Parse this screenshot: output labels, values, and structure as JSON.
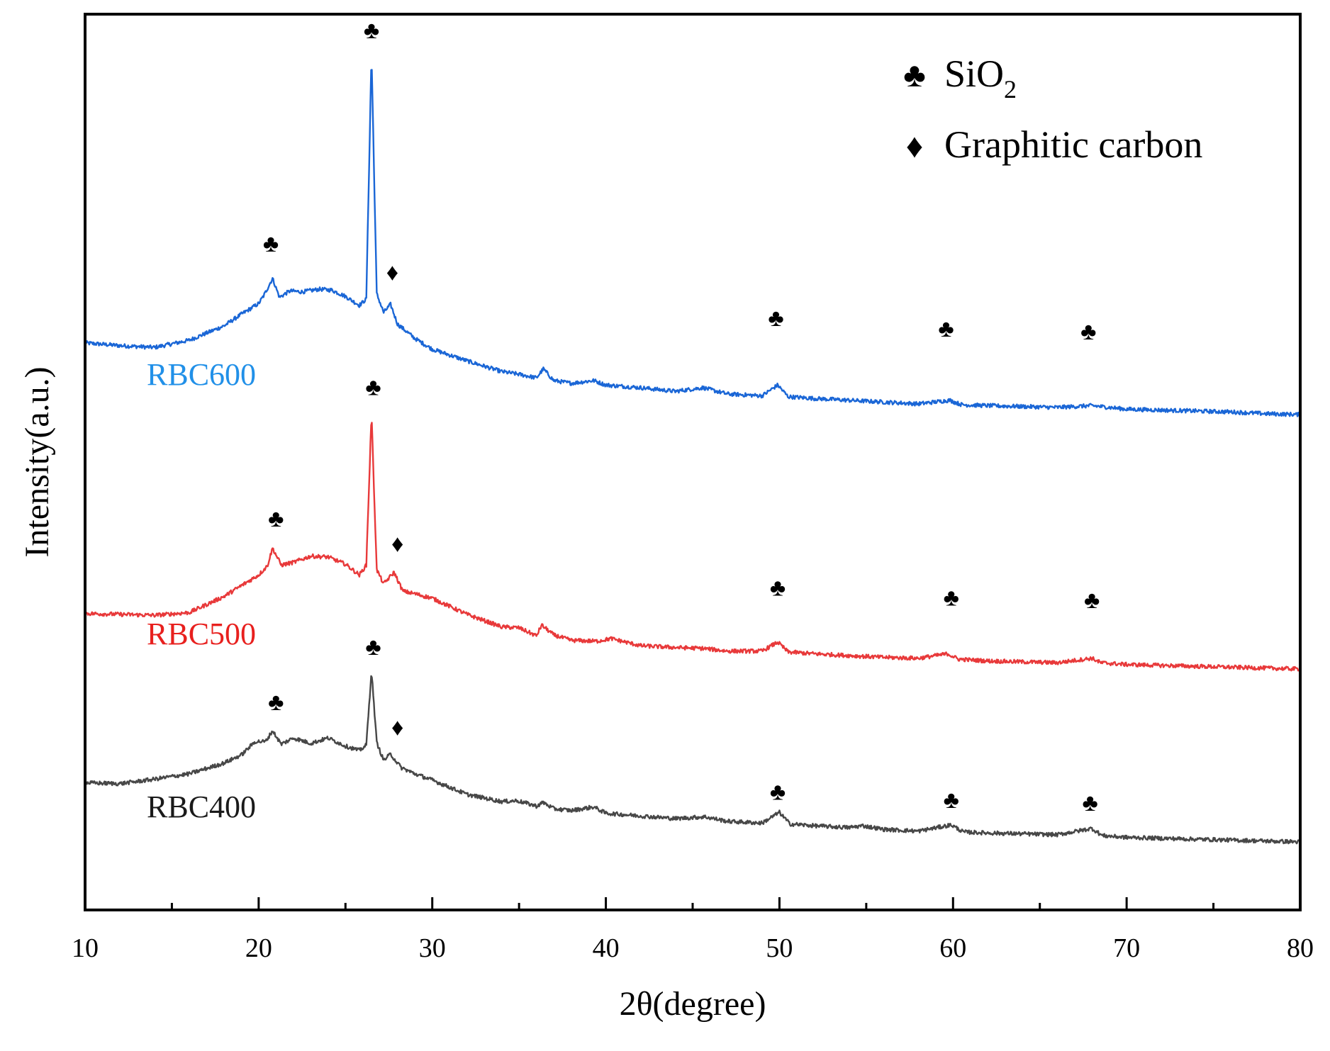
{
  "chart_data": {
    "type": "line",
    "title": "",
    "xlabel": "2θ(degree)",
    "ylabel": "Intensity(a.u.)",
    "xlim": [
      10,
      80
    ],
    "ylim": [
      0,
      100
    ],
    "xticks": [
      10,
      20,
      30,
      40,
      50,
      60,
      70,
      80
    ],
    "xtick_labels": [
      "10",
      "20",
      "30",
      "40",
      "50",
      "60",
      "70",
      "80"
    ],
    "grid": false,
    "legend": {
      "position": "top-right",
      "entries": [
        {
          "symbol": "♣",
          "text": "SiO",
          "subscript": "2",
          "meaning": "SiO2"
        },
        {
          "symbol": "♦",
          "text": "Graphitic carbon",
          "subscript": "",
          "meaning": "Graphitic carbon"
        }
      ]
    },
    "series": [
      {
        "name": "RBC600",
        "color": "#1a66d6",
        "label_color": "#2190e8",
        "x": [
          10,
          12,
          14,
          16,
          18,
          19,
          20,
          20.3,
          20.8,
          21.2,
          21.8,
          22.5,
          23.5,
          24.2,
          25,
          25.8,
          26.2,
          26.5,
          26.8,
          27.2,
          27.6,
          28,
          29,
          30,
          32,
          34,
          35,
          36,
          36.4,
          37,
          38,
          39.3,
          40,
          42,
          44,
          45.6,
          47,
          49,
          49.9,
          50.5,
          52,
          54,
          56,
          58,
          59.8,
          60.5,
          62,
          64,
          66,
          68,
          70,
          72,
          74,
          76,
          78,
          80
        ],
        "values": [
          63.3,
          63.0,
          62.8,
          63.6,
          65.2,
          66.5,
          67.7,
          68.6,
          70.5,
          68.4,
          69.1,
          69.0,
          69.3,
          69.2,
          68.5,
          67.5,
          68.2,
          95.6,
          68.8,
          66.7,
          67.6,
          65.4,
          63.8,
          62.6,
          61.3,
          60.1,
          59.8,
          59.4,
          60.4,
          59.1,
          58.8,
          59.1,
          58.6,
          58.3,
          57.9,
          58.3,
          57.6,
          57.4,
          58.6,
          57.3,
          57.1,
          56.9,
          56.7,
          56.5,
          56.9,
          56.4,
          56.3,
          56.2,
          56.1,
          56.3,
          55.9,
          55.8,
          55.7,
          55.6,
          55.4,
          55.3
        ]
      },
      {
        "name": "RBC500",
        "color": "#e8393a",
        "label_color": "#e8201e",
        "x": [
          10,
          12,
          14,
          16,
          18,
          19,
          20,
          20.5,
          20.8,
          21.3,
          22,
          23,
          24,
          25,
          25.8,
          26.2,
          26.5,
          26.8,
          27.2,
          27.8,
          28.3,
          29,
          30,
          32,
          34,
          35,
          36,
          36.3,
          37,
          38,
          39.5,
          40.3,
          42,
          44,
          45.6,
          47,
          49,
          49.9,
          50.5,
          52,
          54,
          56,
          58,
          59.7,
          60.3,
          62,
          64,
          66,
          68,
          68.5,
          70,
          72,
          74,
          76,
          78,
          80
        ],
        "values": [
          33.1,
          33.0,
          32.9,
          33.2,
          35.0,
          36.2,
          37.4,
          38.4,
          40.4,
          38.5,
          38.8,
          39.5,
          39.4,
          38.6,
          37.4,
          38.5,
          55.4,
          38.0,
          36.4,
          37.7,
          35.6,
          35.3,
          34.8,
          33.0,
          31.6,
          31.5,
          30.6,
          31.8,
          30.7,
          30.1,
          30.0,
          30.3,
          29.5,
          29.3,
          29.2,
          28.9,
          28.9,
          29.9,
          28.8,
          28.6,
          28.4,
          28.2,
          28.1,
          28.6,
          28.0,
          27.8,
          27.7,
          27.6,
          28.1,
          27.6,
          27.4,
          27.3,
          27.2,
          27.1,
          27.0,
          26.9
        ]
      },
      {
        "name": "RBC400",
        "color": "#474747",
        "label_color": "#1a1a1a",
        "x": [
          10,
          12,
          14,
          16,
          18,
          19,
          19.8,
          20.4,
          20.8,
          21.3,
          22,
          23,
          24,
          25,
          25.8,
          26.2,
          26.5,
          26.8,
          27.2,
          27.6,
          28.2,
          29,
          30,
          32,
          34,
          34.9,
          36,
          36.4,
          37,
          38,
          39.3,
          40,
          42,
          44,
          45.7,
          47,
          49,
          50,
          50.6,
          52,
          54,
          54.8,
          56,
          58,
          59.9,
          60.6,
          62,
          64,
          66,
          68,
          68.6,
          70,
          72,
          74,
          76,
          78,
          80
        ],
        "values": [
          14.2,
          14.1,
          14.6,
          15.2,
          16.4,
          17.3,
          18.8,
          18.8,
          20.0,
          18.5,
          19.2,
          18.6,
          19.2,
          18.3,
          17.8,
          18.4,
          26.7,
          18.7,
          16.7,
          17.4,
          15.9,
          15.2,
          14.5,
          12.9,
          12.1,
          12.2,
          11.6,
          12.0,
          11.3,
          11.1,
          11.5,
          10.8,
          10.5,
          10.2,
          10.4,
          9.9,
          9.7,
          10.9,
          9.6,
          9.4,
          9.2,
          9.4,
          9.0,
          8.8,
          9.5,
          8.7,
          8.6,
          8.5,
          8.4,
          9.1,
          8.3,
          8.1,
          8.0,
          7.9,
          7.8,
          7.7,
          7.6
        ]
      }
    ],
    "annotations": [
      {
        "symbol": "♣",
        "x": 26.5,
        "y": 98.4
      },
      {
        "symbol": "♣",
        "x": 20.7,
        "y": 74.6
      },
      {
        "symbol": "♦",
        "x": 27.7,
        "y": 71.4
      },
      {
        "symbol": "♣",
        "x": 49.8,
        "y": 66.3
      },
      {
        "symbol": "♣",
        "x": 59.6,
        "y": 65.1
      },
      {
        "symbol": "♣",
        "x": 67.8,
        "y": 64.8
      },
      {
        "symbol": "♣",
        "x": 26.6,
        "y": 58.6
      },
      {
        "symbol": "♣",
        "x": 21.0,
        "y": 43.9
      },
      {
        "symbol": "♦",
        "x": 28.0,
        "y": 41.1
      },
      {
        "symbol": "♣",
        "x": 49.9,
        "y": 36.2
      },
      {
        "symbol": "♣",
        "x": 59.9,
        "y": 35.1
      },
      {
        "symbol": "♣",
        "x": 68.0,
        "y": 34.8
      },
      {
        "symbol": "♣",
        "x": 26.6,
        "y": 29.6
      },
      {
        "symbol": "♣",
        "x": 21.0,
        "y": 23.4
      },
      {
        "symbol": "♦",
        "x": 28.0,
        "y": 20.6
      },
      {
        "symbol": "♣",
        "x": 49.9,
        "y": 13.4
      },
      {
        "symbol": "♣",
        "x": 59.9,
        "y": 12.5
      },
      {
        "symbol": "♣",
        "x": 67.9,
        "y": 12.2
      }
    ]
  }
}
